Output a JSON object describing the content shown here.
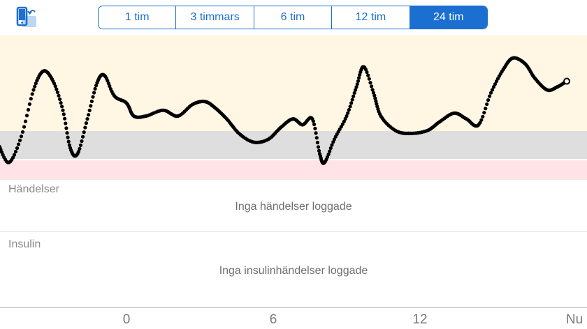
{
  "toolbar": {
    "rotate_icon": "rotate-device-icon",
    "ranges": [
      "1 tim",
      "3 timmars",
      "6 tim",
      "12 tim",
      "24 tim"
    ],
    "selected_range": "24 tim",
    "accent_color": "#1a6fd0"
  },
  "chart_data": {
    "type": "scatter",
    "range_colors": {
      "high": "#fff6e3",
      "target": "#dedede",
      "low": "#ffe3e6"
    },
    "x_ticks": [
      "0",
      "6",
      "12",
      "Nu"
    ],
    "series": [
      {
        "points": [
          [
            -5.2,
            0.23
          ],
          [
            -4.8,
            0.12
          ],
          [
            -4.3,
            0.3
          ],
          [
            -3.8,
            0.62
          ],
          [
            -3.4,
            0.75
          ],
          [
            -3.0,
            0.68
          ],
          [
            -2.6,
            0.48
          ],
          [
            -2.3,
            0.22
          ],
          [
            -2.0,
            0.18
          ],
          [
            -1.6,
            0.42
          ],
          [
            -1.2,
            0.67
          ],
          [
            -0.9,
            0.72
          ],
          [
            -0.5,
            0.58
          ],
          [
            0.0,
            0.53
          ],
          [
            0.3,
            0.44
          ],
          [
            0.8,
            0.44
          ],
          [
            1.5,
            0.48
          ],
          [
            2.1,
            0.44
          ],
          [
            2.7,
            0.52
          ],
          [
            3.2,
            0.54
          ],
          [
            3.6,
            0.5
          ],
          [
            4.1,
            0.42
          ],
          [
            4.6,
            0.32
          ],
          [
            5.2,
            0.26
          ],
          [
            5.8,
            0.28
          ],
          [
            6.3,
            0.36
          ],
          [
            6.8,
            0.42
          ],
          [
            7.2,
            0.38
          ],
          [
            7.6,
            0.42
          ],
          [
            7.9,
            0.18
          ],
          [
            8.1,
            0.12
          ],
          [
            8.5,
            0.28
          ],
          [
            9.0,
            0.44
          ],
          [
            9.4,
            0.64
          ],
          [
            9.7,
            0.78
          ],
          [
            10.1,
            0.6
          ],
          [
            10.4,
            0.44
          ],
          [
            11.0,
            0.34
          ],
          [
            11.6,
            0.32
          ],
          [
            12.3,
            0.34
          ],
          [
            12.8,
            0.4
          ],
          [
            13.4,
            0.46
          ],
          [
            13.9,
            0.42
          ],
          [
            14.4,
            0.38
          ],
          [
            14.9,
            0.6
          ],
          [
            15.4,
            0.76
          ],
          [
            15.8,
            0.84
          ],
          [
            16.3,
            0.8
          ],
          [
            16.7,
            0.7
          ],
          [
            17.2,
            0.62
          ],
          [
            17.6,
            0.64
          ],
          [
            18.0,
            0.68
          ]
        ]
      }
    ]
  },
  "events": {
    "label": "Händelser",
    "empty_message": "Inga händelser loggade"
  },
  "insulin": {
    "label": "Insulin",
    "empty_message": "Inga insulinhändelser loggade"
  }
}
